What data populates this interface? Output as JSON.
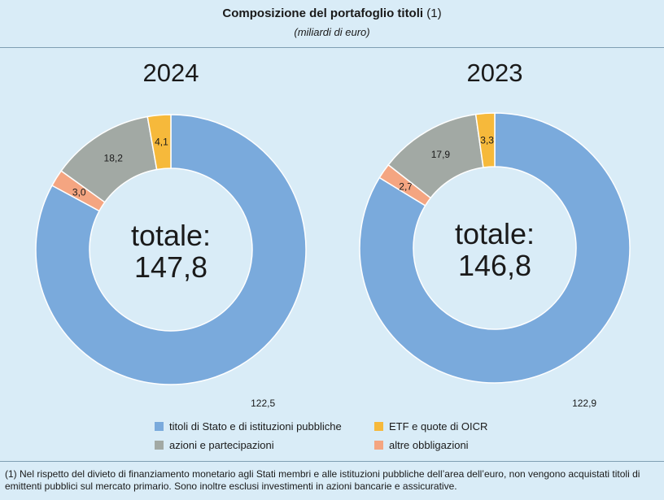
{
  "header": {
    "title": "Composizione del portafoglio titoli",
    "title_note": "(1)",
    "subtitle": "(miliardi di euro)"
  },
  "colors": {
    "titoli_stato": "#7aaadc",
    "azioni": "#a2a9a4",
    "etf": "#f6b93b",
    "altre_obbligazioni": "#f4a581",
    "background": "#d9ecf7"
  },
  "chart_data": [
    {
      "type": "pie",
      "donut": true,
      "title": "2024",
      "center_label_line1": "totale:",
      "center_label_line2": "147,8",
      "slices": [
        {
          "label": "titoli di Stato e di istituzioni pubbliche",
          "value": 122.5,
          "display": "122,5",
          "color": "#7aaadc"
        },
        {
          "label": "altre obbligazioni",
          "value": 3.0,
          "display": "3,0",
          "color": "#f4a581"
        },
        {
          "label": "azioni e partecipazioni",
          "value": 18.2,
          "display": "18,2",
          "color": "#a2a9a4"
        },
        {
          "label": "ETF e quote di OICR",
          "value": 4.1,
          "display": "4,1",
          "color": "#f6b93b"
        }
      ]
    },
    {
      "type": "pie",
      "donut": true,
      "title": "2023",
      "center_label_line1": "totale:",
      "center_label_line2": "146,8",
      "slices": [
        {
          "label": "titoli di Stato e di istituzioni pubbliche",
          "value": 122.9,
          "display": "122,9",
          "color": "#7aaadc"
        },
        {
          "label": "altre obbligazioni",
          "value": 2.7,
          "display": "2,7",
          "color": "#f4a581"
        },
        {
          "label": "azioni e partecipazioni",
          "value": 17.9,
          "display": "17,9",
          "color": "#a2a9a4"
        },
        {
          "label": "ETF e quote di OICR",
          "value": 3.3,
          "display": "3,3",
          "color": "#f6b93b"
        }
      ]
    }
  ],
  "legend": [
    {
      "label": "titoli di Stato e di istituzioni pubbliche",
      "color": "#7aaadc"
    },
    {
      "label": "ETF e quote di OICR",
      "color": "#f6b93b"
    },
    {
      "label": "azioni e partecipazioni",
      "color": "#a2a9a4"
    },
    {
      "label": "altre obbligazioni",
      "color": "#f4a581"
    }
  ],
  "footnote": "(1) Nel rispetto del divieto di finanziamento monetario agli Stati membri e alle istituzioni pubbliche dell’area dell’euro, non vengono acquistati titoli di emittenti pubblici sul mercato primario. Sono inoltre esclusi investimenti in azioni bancarie e assicurative."
}
